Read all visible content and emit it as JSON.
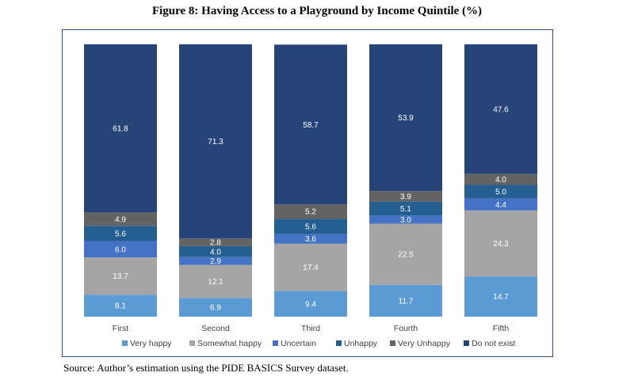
{
  "title": "Figure 8: Having Access to a Playground by Income Quintile (%)",
  "source": "Source: Author’s estimation using the PIDE BASICS Survey dataset.",
  "chart_data": {
    "type": "bar",
    "stacked": true,
    "categories": [
      "First",
      "Second",
      "Third",
      "Fourth",
      "Fifth"
    ],
    "series": [
      {
        "name": "Very happy",
        "color": "#5b9bd5",
        "values": [
          8.1,
          6.9,
          9.4,
          11.7,
          14.7
        ]
      },
      {
        "name": "Somewhat happy",
        "color": "#a5a5a5",
        "values": [
          13.7,
          12.1,
          17.4,
          22.5,
          24.3
        ]
      },
      {
        "name": "Uncertain",
        "color": "#4472c4",
        "values": [
          6.0,
          2.9,
          3.6,
          3.0,
          4.4
        ]
      },
      {
        "name": "Unhappy",
        "color": "#255e91",
        "values": [
          5.6,
          4.0,
          5.6,
          5.1,
          5.0
        ]
      },
      {
        "name": "Very Unhappy",
        "color": "#636363",
        "values": [
          4.9,
          2.8,
          5.2,
          3.9,
          4.0
        ]
      },
      {
        "name": "Do not exist",
        "color": "#264478",
        "values": [
          61.8,
          71.3,
          58.7,
          53.9,
          47.6
        ]
      }
    ],
    "ylim": [
      0,
      100
    ],
    "legend_position": "bottom",
    "grid": false
  }
}
